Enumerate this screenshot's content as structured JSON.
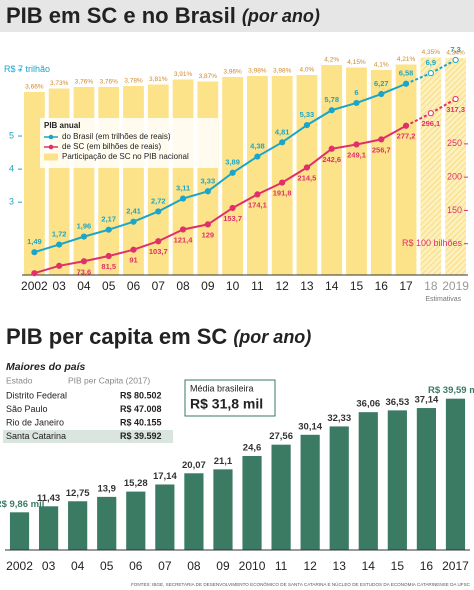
{
  "chart_data": [
    {
      "type": "combo",
      "title": "PIB em SC e no Brasil",
      "subtitle": "(por ano)",
      "categories": [
        "2002",
        "03",
        "04",
        "05",
        "06",
        "07",
        "08",
        "09",
        "10",
        "11",
        "12",
        "13",
        "14",
        "15",
        "16",
        "17",
        "18",
        "2019"
      ],
      "estimate_label": "Estimativas",
      "estimate_start": 16,
      "legend_title": "PIB anual",
      "series": [
        {
          "name": "do Brasil (em trilhões de reais)",
          "kind": "line",
          "color": "#1ba6c8",
          "values": [
            1.49,
            1.72,
            1.96,
            2.17,
            2.41,
            2.72,
            3.11,
            3.33,
            3.89,
            4.38,
            4.81,
            5.33,
            5.78,
            6,
            6.27,
            6.58,
            6.9,
            7.3
          ],
          "value_labels": [
            "1,49",
            "1,72",
            "1,96",
            "2,17",
            "2,41",
            "2,72",
            "3,11",
            "3,33",
            "3,89",
            "4,38",
            "4,81",
            "5,33",
            "5,78",
            "6",
            "6,27",
            "6,58",
            "6,9",
            "7,3"
          ]
        },
        {
          "name": "de SC (em bilhões de reais)",
          "kind": "line",
          "axis": "y2",
          "color": "#e0306a",
          "values": [
            55.7,
            66.8,
            73.6,
            81.5,
            91,
            103.7,
            121.4,
            129,
            153.7,
            174.1,
            191.8,
            214.5,
            242.6,
            249.1,
            256.7,
            277.2,
            296.1,
            317.3
          ],
          "value_labels": [
            null,
            null,
            "73,6",
            "81,5",
            "91",
            "103,7",
            "121,4",
            "129",
            "153,7",
            "174,1",
            "191,8",
            "214,5",
            "242,6",
            "249,1",
            "256,7",
            "277,2",
            "296,1",
            "317,3"
          ]
        },
        {
          "name": "Participação de SC no PIB nacional",
          "kind": "bar",
          "axis": "y3",
          "color": "#fce38a",
          "values": [
            3.66,
            3.73,
            3.76,
            3.76,
            3.78,
            3.81,
            3.91,
            3.87,
            3.96,
            3.98,
            3.98,
            4.0,
            4.2,
            4.15,
            4.1,
            4.21,
            4.35,
            4.34
          ],
          "value_labels": [
            "3,66%",
            "3,73%",
            "3,76%",
            "3,76%",
            "3,78%",
            "3,81%",
            "3,91%",
            "3,87%",
            "3,96%",
            "3,98%",
            "3,98%",
            "4,0%",
            "4,2%",
            "4,15%",
            "4,1%",
            "4,21%",
            "4,35%",
            "4,34%"
          ]
        }
      ],
      "ylim": [
        0.8,
        7.6
      ],
      "yticks": [
        {
          "value": 7,
          "label": "R$ 7 trilhão"
        },
        5,
        4,
        3
      ],
      "y2lim": [
        53,
        391
      ],
      "y2ticks": [
        250,
        200,
        150,
        {
          "value": 100,
          "label": "R$ 100 bilhões"
        }
      ],
      "y3lim": [
        0,
        4.5
      ]
    },
    {
      "type": "bar",
      "title": "PIB per capita em SC",
      "subtitle": "(por ano)",
      "color": "#3b7a63",
      "categories": [
        "2002",
        "03",
        "04",
        "05",
        "06",
        "07",
        "08",
        "09",
        "2010",
        "11",
        "12",
        "13",
        "14",
        "15",
        "16",
        "2017"
      ],
      "values": [
        9.86,
        11.43,
        12.75,
        13.9,
        15.28,
        17.14,
        20.07,
        21.1,
        24.6,
        27.56,
        30.14,
        32.33,
        36.06,
        36.53,
        37.14,
        39.59
      ],
      "value_labels": [
        "R$ 9,86 mil",
        "11,43",
        "12,75",
        "13,9",
        "15,28",
        "17,14",
        "20,07",
        "21,1",
        "24,6",
        "27,56",
        "30,14",
        "32,33",
        "36,06",
        "36,53",
        "37,14",
        "R$ 39,59 mil"
      ],
      "ylim": [
        0,
        45
      ]
    }
  ],
  "ranking": {
    "title": "Maiores do país",
    "columns": [
      "Estado",
      "PIB per Capita (2017)"
    ],
    "rows": [
      [
        "Distrito Federal",
        "R$ 80.502"
      ],
      [
        "São Paulo",
        "R$ 47.008"
      ],
      [
        "Rio de Janeiro",
        "R$ 40.155"
      ],
      [
        "Santa Catarina",
        "R$ 39.592"
      ]
    ],
    "highlight_row": 3
  },
  "average": {
    "label": "Média brasileira",
    "value": "R$ 31,8 mil"
  },
  "source": "FONTES: IBGE, SECRETARIA DE DESENVOLVIMENTO ECONÔMICO DE SANTA CATARINA E NÚCLEO DE ESTUDOS DA ECONOMIA CATARINENSE DA UFSC"
}
